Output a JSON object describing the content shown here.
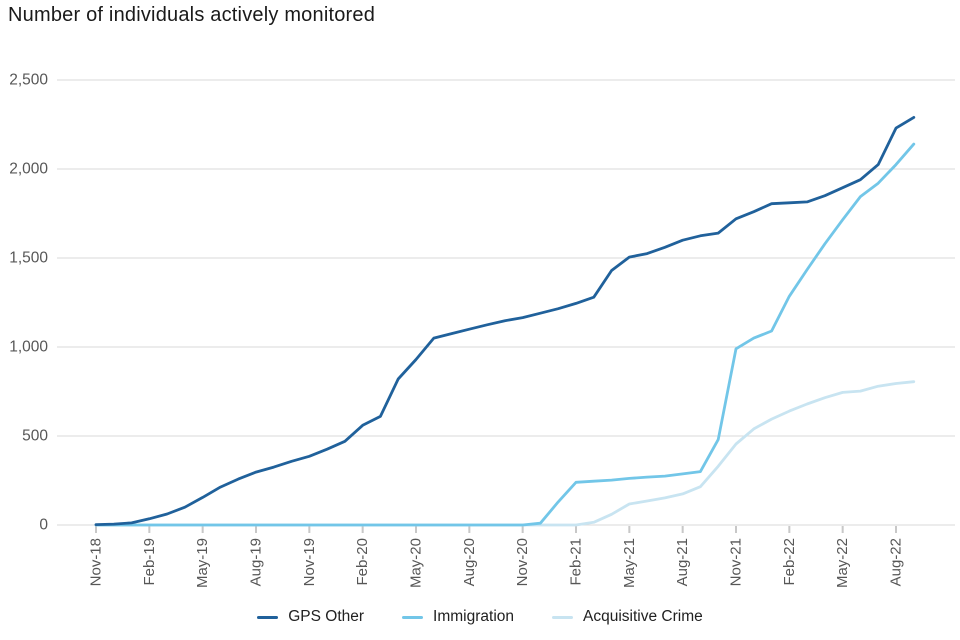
{
  "title": "Number of individuals actively monitored",
  "chart_data": {
    "type": "line",
    "title": "Number of individuals actively monitored",
    "xlabel": "",
    "ylabel": "",
    "ylim": [
      0,
      2500
    ],
    "grid": true,
    "legend_position": "bottom",
    "yticks": [
      0,
      500,
      1000,
      1500,
      2000,
      2500
    ],
    "y_tick_labels": [
      "0",
      "500",
      "1,000",
      "1,500",
      "2,000",
      "2,500"
    ],
    "x_tick_labels": [
      "Nov-18",
      "Feb-19",
      "May-19",
      "Aug-19",
      "Nov-19",
      "Feb-20",
      "May-20",
      "Aug-20",
      "Nov-20",
      "Feb-21",
      "May-21",
      "Aug-21",
      "Nov-21",
      "Feb-22",
      "May-22",
      "Aug-22"
    ],
    "x": [
      "Nov-18",
      "Dec-18",
      "Jan-19",
      "Feb-19",
      "Mar-19",
      "Apr-19",
      "May-19",
      "Jun-19",
      "Jul-19",
      "Aug-19",
      "Sep-19",
      "Oct-19",
      "Nov-19",
      "Dec-19",
      "Jan-20",
      "Feb-20",
      "Mar-20",
      "Apr-20",
      "May-20",
      "Jun-20",
      "Jul-20",
      "Aug-20",
      "Sep-20",
      "Oct-20",
      "Nov-20",
      "Dec-20",
      "Jan-21",
      "Feb-21",
      "Mar-21",
      "Apr-21",
      "May-21",
      "Jun-21",
      "Jul-21",
      "Aug-21",
      "Sep-21",
      "Oct-21",
      "Nov-21",
      "Dec-21",
      "Jan-22",
      "Feb-22",
      "Mar-22",
      "Apr-22",
      "May-22",
      "Jun-22",
      "Jul-22",
      "Aug-22",
      "Sep-22"
    ],
    "series": [
      {
        "name": "GPS Other",
        "color": "#20619b",
        "values": [
          2,
          5,
          12,
          35,
          62,
          100,
          155,
          213,
          258,
          297,
          325,
          358,
          386,
          426,
          470,
          560,
          610,
          820,
          930,
          1050,
          1075,
          1100,
          1125,
          1148,
          1165,
          1190,
          1215,
          1245,
          1280,
          1430,
          1505,
          1525,
          1560,
          1600,
          1625,
          1640,
          1720,
          1760,
          1805,
          1810,
          1815,
          1850,
          1895,
          1940,
          2025,
          2230,
          2290
        ]
      },
      {
        "name": "Immigration",
        "color": "#72c6e8",
        "values": [
          0,
          0,
          0,
          0,
          0,
          0,
          0,
          0,
          0,
          0,
          0,
          0,
          0,
          0,
          0,
          0,
          0,
          0,
          0,
          0,
          0,
          0,
          0,
          0,
          0,
          10,
          130,
          240,
          246,
          252,
          262,
          269,
          275,
          287,
          300,
          480,
          990,
          1050,
          1090,
          1285,
          1435,
          1580,
          1715,
          1845,
          1920,
          2025,
          2140
        ]
      },
      {
        "name": "Acquisitive Crime",
        "color": "#c8e4f1",
        "values": [
          0,
          0,
          0,
          0,
          0,
          0,
          0,
          0,
          0,
          0,
          0,
          0,
          0,
          0,
          0,
          0,
          0,
          0,
          0,
          0,
          0,
          0,
          0,
          0,
          0,
          0,
          0,
          0,
          15,
          60,
          118,
          135,
          152,
          175,
          215,
          330,
          455,
          540,
          595,
          640,
          680,
          715,
          745,
          752,
          780,
          795,
          805
        ]
      }
    ]
  },
  "colors": {
    "gridline": "#d9d9d9",
    "tick": "#c8c8c8",
    "axis_text": "#575757",
    "title_text": "#1a1a1a"
  }
}
